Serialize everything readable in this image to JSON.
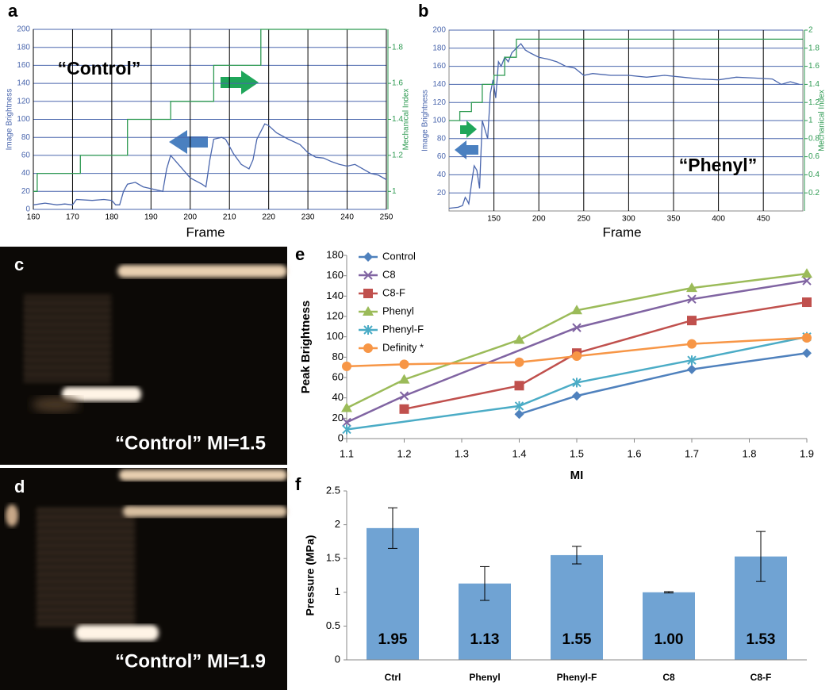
{
  "chart_data": [
    {
      "type": "line",
      "panel": "a",
      "xlabel": "Frame",
      "ylabel": "Image Brightness",
      "y2label": "Mechanical Index",
      "xlim": [
        160,
        250
      ],
      "xticks": [
        160,
        170,
        180,
        190,
        200,
        210,
        220,
        230,
        240,
        250
      ],
      "ylim": [
        0,
        200
      ],
      "yticks": [
        0,
        20,
        40,
        60,
        80,
        100,
        120,
        140,
        160,
        180,
        200
      ],
      "y2lim": [
        0.9,
        1.9
      ],
      "y2ticks": [
        1,
        1.2,
        1.4,
        1.6,
        1.8
      ],
      "grid": true,
      "annotations": [
        "“Control”"
      ],
      "series": [
        {
          "color": "#4a66ad",
          "x": [
            160,
            163,
            166,
            168,
            170,
            171,
            175,
            178,
            180,
            181,
            182,
            183,
            184,
            186,
            188,
            190,
            193,
            194,
            195,
            196,
            198,
            200,
            203,
            204,
            205,
            206,
            208,
            209,
            211,
            213,
            215,
            216,
            217,
            219,
            220,
            222,
            225,
            228,
            230,
            232,
            234,
            236,
            238,
            240,
            242,
            244,
            246,
            248,
            250
          ],
          "values": [
            5,
            7,
            5,
            6,
            5,
            11,
            10,
            11,
            10,
            5,
            5,
            20,
            28,
            30,
            25,
            23,
            20,
            45,
            60,
            55,
            45,
            35,
            28,
            25,
            55,
            78,
            80,
            78,
            62,
            50,
            45,
            55,
            78,
            95,
            93,
            85,
            78,
            72,
            63,
            58,
            57,
            53,
            50,
            48,
            50,
            45,
            40,
            38,
            33
          ]
        },
        {
          "color": "#2e9a52",
          "axis": "y2",
          "x": [
            160,
            161,
            161,
            172,
            172,
            184,
            184,
            195,
            195,
            206,
            206,
            218,
            218,
            250
          ],
          "values": [
            1.0,
            1.0,
            1.1,
            1.1,
            1.2,
            1.2,
            1.4,
            1.4,
            1.5,
            1.5,
            1.7,
            1.7,
            1.9,
            1.9
          ]
        }
      ]
    },
    {
      "type": "line",
      "panel": "b",
      "xlabel": "Frame",
      "ylabel": "Image Brightness",
      "y2label": "Mechanical Index",
      "xlim": [
        100,
        494
      ],
      "xticks": [
        150,
        200,
        250,
        300,
        350,
        400,
        450
      ],
      "ylim": [
        0,
        200
      ],
      "yticks": [
        20,
        40,
        60,
        80,
        100,
        120,
        140,
        160,
        180,
        200
      ],
      "y2lim": [
        0,
        2
      ],
      "y2ticks": [
        0.2,
        0.4,
        0.6,
        0.8,
        1,
        1.2,
        1.4,
        1.6,
        1.8,
        2
      ],
      "grid": true,
      "annotations": [
        "“Phenyl”"
      ],
      "series": [
        {
          "color": "#4a66ad",
          "x": [
            100,
            110,
            115,
            118,
            120,
            122,
            125,
            128,
            131,
            134,
            137,
            140,
            143,
            146,
            149,
            152,
            155,
            158,
            162,
            166,
            170,
            175,
            180,
            185,
            190,
            200,
            210,
            220,
            230,
            240,
            250,
            260,
            280,
            300,
            320,
            340,
            360,
            380,
            400,
            420,
            440,
            460,
            470,
            480,
            490
          ],
          "values": [
            3,
            4,
            6,
            15,
            12,
            8,
            30,
            50,
            45,
            25,
            100,
            90,
            80,
            130,
            145,
            125,
            165,
            160,
            170,
            165,
            175,
            180,
            185,
            178,
            175,
            170,
            168,
            165,
            160,
            158,
            150,
            152,
            150,
            150,
            148,
            150,
            148,
            146,
            145,
            148,
            147,
            146,
            140,
            143,
            140
          ]
        },
        {
          "color": "#2e9a52",
          "axis": "y2",
          "x": [
            100,
            112,
            112,
            125,
            125,
            137,
            137,
            150,
            150,
            162,
            162,
            175,
            175,
            494
          ],
          "values": [
            1.0,
            1.0,
            1.1,
            1.1,
            1.2,
            1.2,
            1.4,
            1.4,
            1.5,
            1.5,
            1.7,
            1.7,
            1.9,
            1.9
          ]
        }
      ]
    },
    {
      "type": "line",
      "panel": "e",
      "xlabel": "MI",
      "ylabel": "Peak Brightness",
      "xlim": [
        1.1,
        1.9
      ],
      "xticks": [
        1.1,
        1.2,
        1.3,
        1.4,
        1.5,
        1.6,
        1.7,
        1.8,
        1.9
      ],
      "ylim": [
        0,
        180
      ],
      "yticks": [
        0,
        20,
        40,
        60,
        80,
        100,
        120,
        140,
        160,
        180
      ],
      "grid": false,
      "legend": "top-left",
      "series": [
        {
          "name": "Control",
          "color": "#4f81bd",
          "marker": "diamond",
          "x": [
            1.4,
            1.5,
            1.7,
            1.9
          ],
          "values": [
            24,
            42,
            68,
            84
          ]
        },
        {
          "name": "C8",
          "color": "#8064a2",
          "marker": "x",
          "x": [
            1.1,
            1.2,
            1.5,
            1.7,
            1.9
          ],
          "values": [
            16,
            42,
            109,
            137,
            155
          ]
        },
        {
          "name": "C8-F",
          "color": "#c0504d",
          "marker": "square",
          "x": [
            1.2,
            1.4,
            1.5,
            1.7,
            1.9
          ],
          "values": [
            29,
            52,
            84,
            116,
            134
          ]
        },
        {
          "name": "Phenyl",
          "color": "#9bbb59",
          "marker": "triangle",
          "x": [
            1.1,
            1.2,
            1.4,
            1.5,
            1.7,
            1.9
          ],
          "values": [
            30,
            58,
            97,
            126,
            148,
            162
          ]
        },
        {
          "name": "Phenyl-F",
          "color": "#4bacc6",
          "marker": "asterisk",
          "x": [
            1.1,
            1.4,
            1.5,
            1.7,
            1.9
          ],
          "values": [
            9,
            32,
            55,
            77,
            100
          ]
        },
        {
          "name": "Definity *",
          "color": "#f79646",
          "marker": "circle",
          "x": [
            1.1,
            1.2,
            1.4,
            1.5,
            1.7,
            1.9
          ],
          "values": [
            71,
            73,
            75,
            81,
            93,
            99
          ]
        }
      ]
    },
    {
      "type": "bar",
      "panel": "f",
      "ylabel": "Pressure (MPa)",
      "color": "#70a3d3",
      "categories": [
        "Ctrl",
        "Phenyl",
        "Phenyl-F",
        "C8",
        "C8-F"
      ],
      "values": [
        1.95,
        1.13,
        1.55,
        1.0,
        1.53
      ],
      "value_labels": [
        "1.95",
        "1.13",
        "1.55",
        "1.00",
        "1.53"
      ],
      "errors": [
        0.3,
        0.25,
        0.13,
        0.01,
        0.37
      ],
      "ylim": [
        0,
        2.5
      ],
      "yticks": [
        0,
        0.5,
        1,
        1.5,
        2,
        2.5
      ]
    }
  ],
  "images": [
    {
      "panel": "c",
      "caption": "“Control” MI=1.5"
    },
    {
      "panel": "d",
      "caption": "“Control” MI=1.9"
    }
  ]
}
